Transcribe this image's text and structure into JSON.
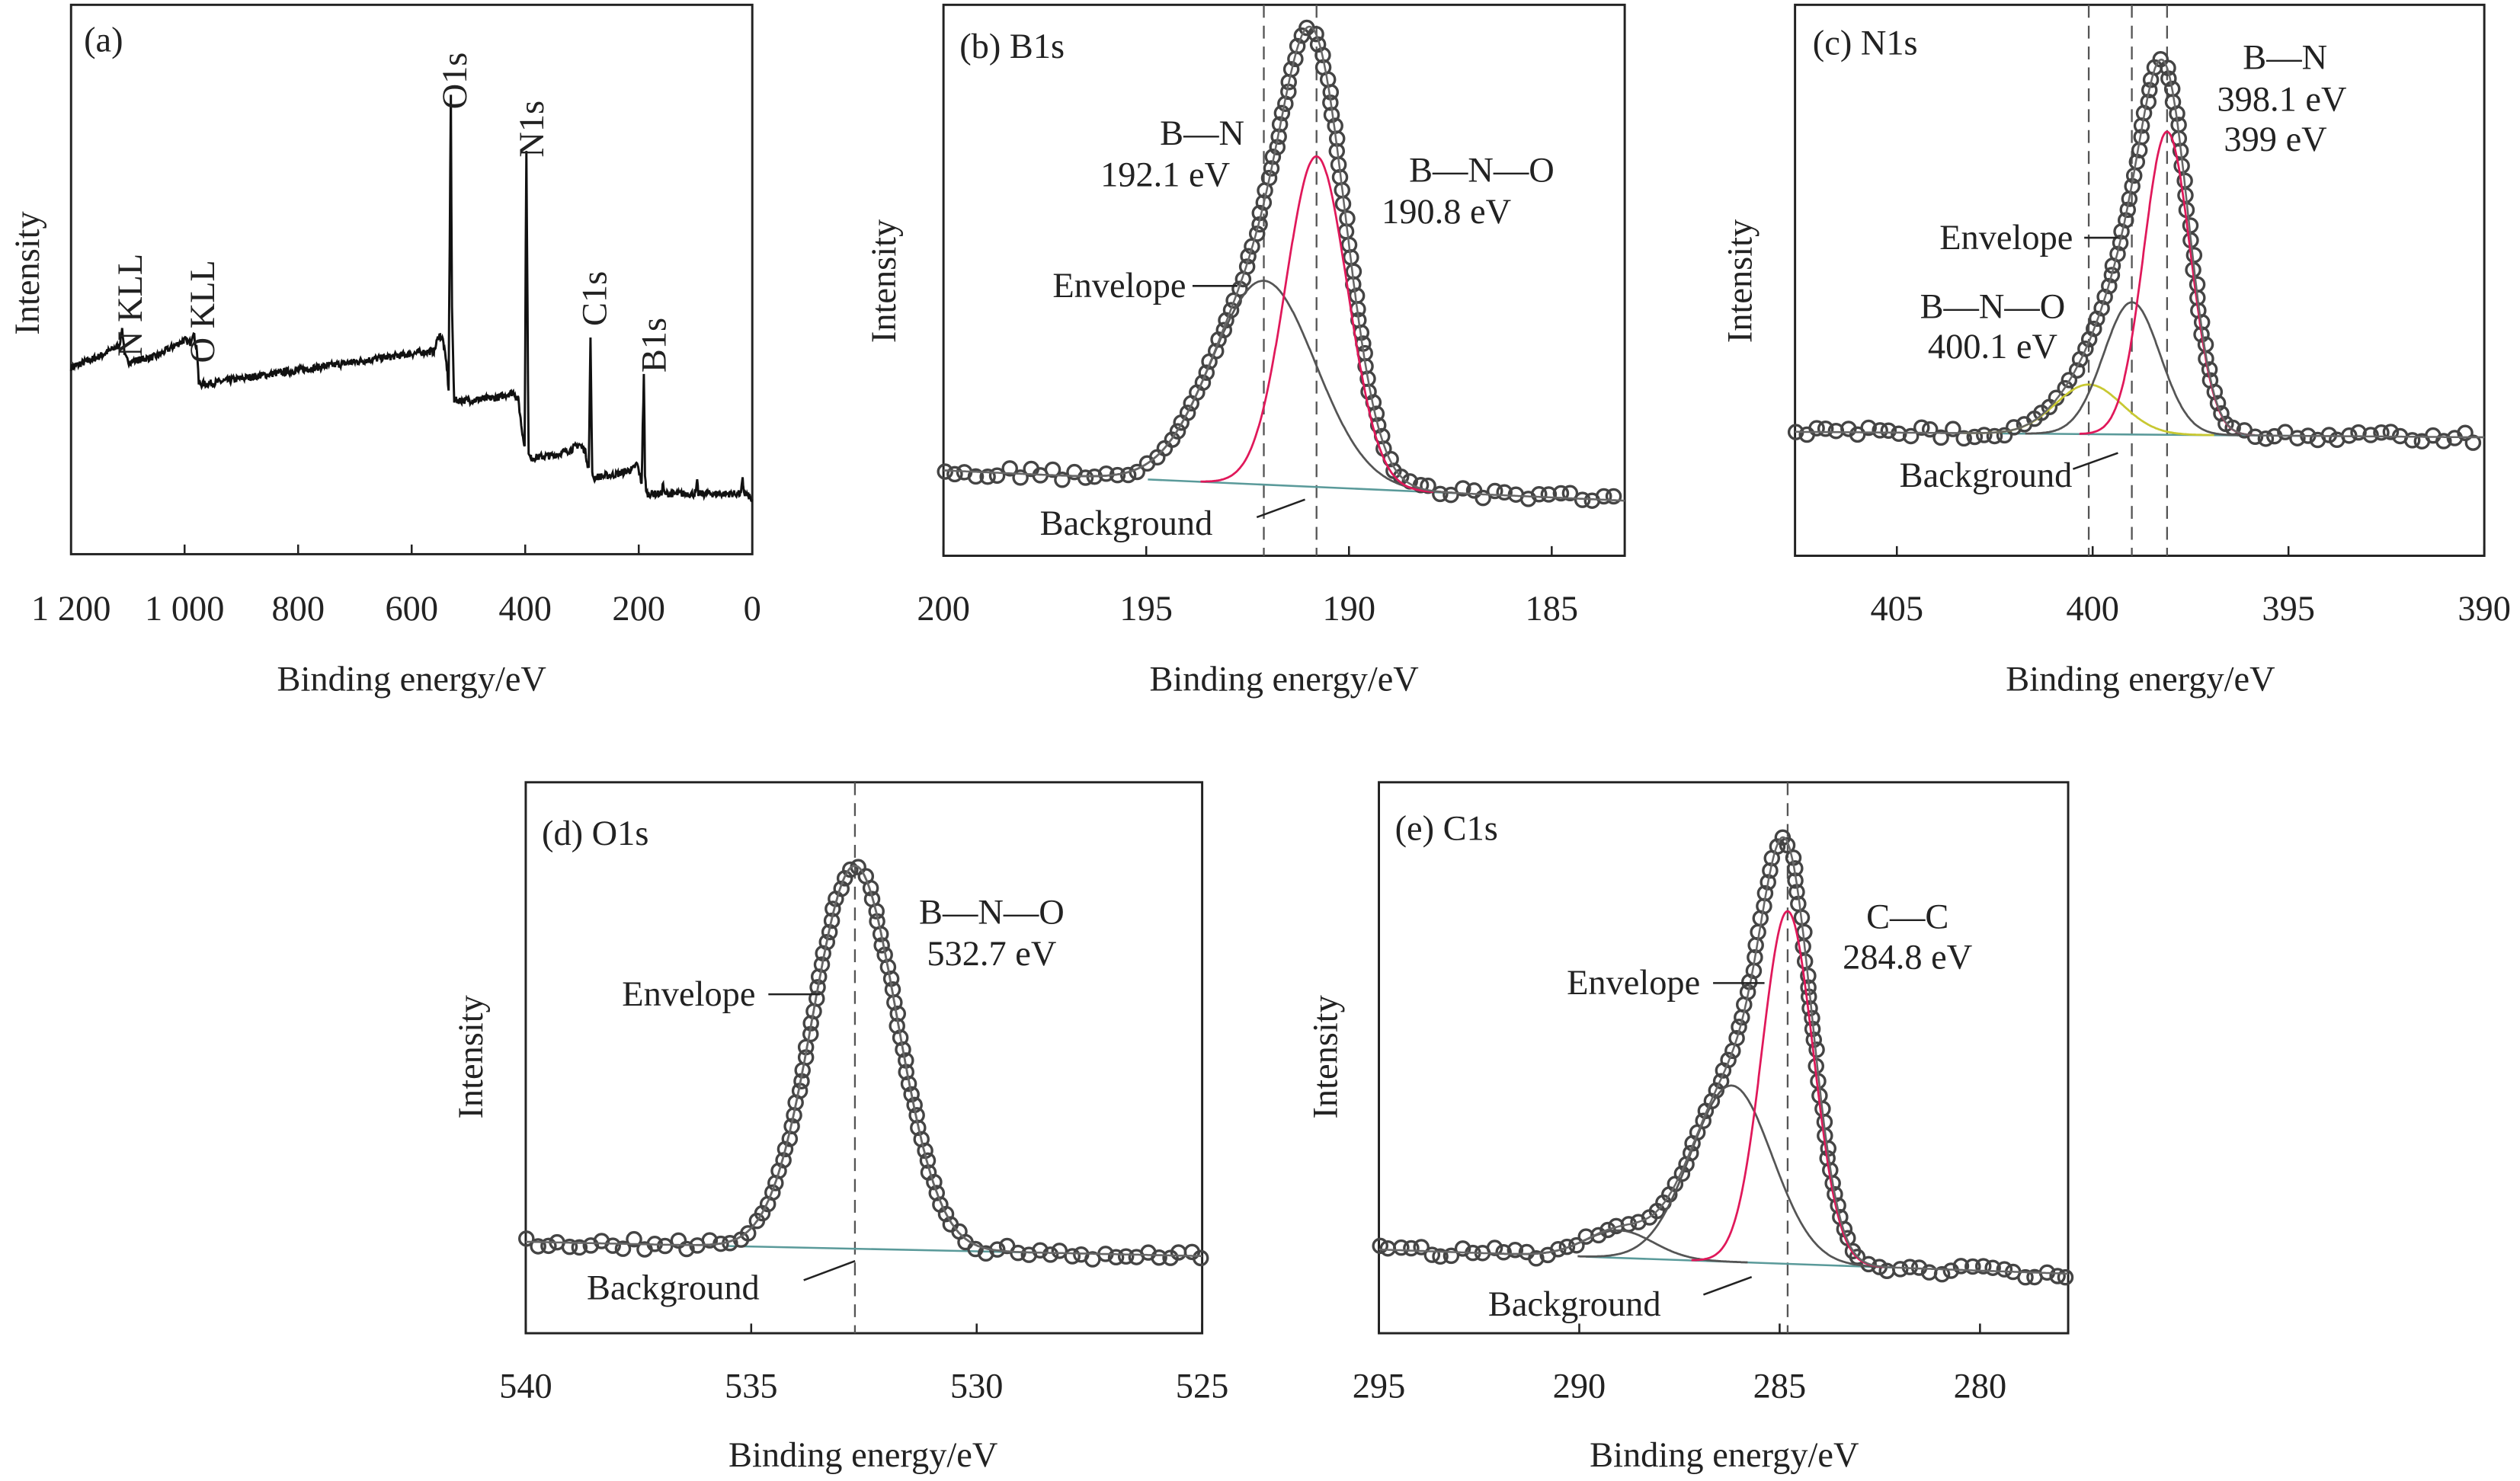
{
  "chart_data": [
    {
      "type": "line",
      "panel": "(a)",
      "xlabel": "Binding energy/eV",
      "ylabel": "Intensity",
      "xlim": [
        1200,
        0
      ],
      "ylim": [
        0,
        100
      ],
      "xticks": [
        1200,
        1000,
        800,
        600,
        400,
        200,
        0
      ],
      "xtick_labels": [
        "1 200",
        "1 000",
        "800",
        "600",
        "400",
        "200",
        "0"
      ],
      "peak_labels": [
        "N KLL",
        "O KLL",
        "O1s",
        "N1s",
        "C1s",
        "B1s"
      ],
      "x": [
        1200,
        1150,
        1115,
        1110,
        1105,
        1100,
        1050,
        1000,
        990,
        985,
        978,
        975,
        960,
        900,
        800,
        700,
        600,
        560,
        552,
        545,
        538,
        535,
        531,
        529,
        525,
        500,
        450,
        420,
        412,
        405,
        401,
        398,
        394,
        390,
        350,
        320,
        305,
        295,
        288,
        285,
        282,
        278,
        240,
        210,
        203,
        195,
        191,
        189,
        186,
        160,
        157,
        155,
        100,
        97,
        95,
        40,
        20,
        17,
        14,
        5,
        0
      ],
      "y": [
        34,
        36,
        38,
        41,
        36,
        35,
        36,
        39,
        38.5,
        40.5,
        37,
        31,
        31,
        32,
        33.5,
        35,
        36.5,
        37,
        40,
        39,
        34,
        30,
        83,
        45,
        28,
        28,
        28.5,
        29.5,
        28,
        22,
        20,
        74,
        18,
        17.5,
        18,
        19,
        20,
        19,
        15.5,
        39,
        14.5,
        14,
        14.5,
        15.5,
        16.5,
        13,
        33,
        14,
        11,
        11,
        13,
        11,
        11,
        13,
        11,
        11,
        11,
        13.5,
        11,
        10.5,
        9.6
      ]
    },
    {
      "type": "line",
      "panel": "(b) B1s",
      "xlabel": "Binding energy/eV",
      "ylabel": "Intensity",
      "xlim": [
        200,
        183.2
      ],
      "ylim": [
        0,
        100
      ],
      "xticks": [
        200,
        195,
        190,
        185
      ],
      "background": [
        15.5,
        10
      ],
      "components": [
        {
          "name": "B—N",
          "center": 192.1,
          "height": 37,
          "fwhm": 3.0,
          "color": "#555555"
        },
        {
          "name": "B—N—O",
          "center": 190.8,
          "height": 60,
          "fwhm": 1.8,
          "color": "#e0185a"
        }
      ],
      "reference_lines": [
        192.1,
        190.8
      ],
      "annotations": {
        "bn": "B—N",
        "bn_ev": "192.1 eV",
        "bno": "B—N—O",
        "bno_ev": "190.8 eV",
        "envelope": "Envelope",
        "background": "Background"
      }
    },
    {
      "type": "line",
      "panel": "(c) N1s",
      "xlabel": "Binding energy/eV",
      "ylabel": "Intensity",
      "xlim": [
        407.6,
        390
      ],
      "ylim": [
        0,
        100
      ],
      "xticks": [
        405,
        400,
        395,
        390
      ],
      "background": [
        22.5,
        21.5
      ],
      "components": [
        {
          "center": 400.1,
          "height": 9,
          "fwhm": 2.0,
          "color": "#c8c832"
        },
        {
          "center": 399,
          "height": 24,
          "fwhm": 1.7,
          "color": "#555555"
        },
        {
          "center": 398.1,
          "height": 55,
          "fwhm": 1.4,
          "color": "#e0185a"
        }
      ],
      "reference_lines": [
        400.1,
        399,
        398.1
      ],
      "annotations": {
        "bn": "B—N",
        "bn_ev1": "398.1 eV",
        "bn_ev2": "399 eV",
        "bno": "B—N—O",
        "bno_ev": "400.1 eV",
        "envelope": "Envelope",
        "background": "Background"
      }
    },
    {
      "type": "line",
      "panel": "(d) O1s",
      "xlabel": "Binding energy/eV",
      "ylabel": "Intensity",
      "xlim": [
        540,
        525
      ],
      "ylim": [
        0,
        100
      ],
      "xticks": [
        540,
        535,
        530,
        525
      ],
      "background": [
        16.6,
        14
      ],
      "components": [
        {
          "name": "B—N—O",
          "center": 532.7,
          "height": 69.5,
          "fwhm": 2.2,
          "color": "#555555"
        }
      ],
      "reference_lines": [
        532.7
      ],
      "annotations": {
        "bno": "B—N—O",
        "bno_ev": "532.7 eV",
        "envelope": "Envelope",
        "background": "Background"
      }
    },
    {
      "type": "line",
      "panel": "(e) C1s",
      "xlabel": "Binding energy/eV",
      "ylabel": "Intensity",
      "xlim": [
        295,
        277.8
      ],
      "ylim": [
        0,
        100
      ],
      "xticks": [
        295,
        290,
        285,
        280
      ],
      "background": [
        15.2,
        10.8
      ],
      "components": [
        {
          "center": 289,
          "height": 5,
          "fwhm": 2.0,
          "color": "#555555"
        },
        {
          "center": 286.2,
          "height": 32,
          "fwhm": 2.4,
          "color": "#555555"
        },
        {
          "name": "C—C",
          "center": 284.8,
          "height": 64,
          "fwhm": 1.5,
          "color": "#e0185a"
        }
      ],
      "reference_lines": [
        284.8
      ],
      "annotations": {
        "cc": "C—C",
        "cc_ev": "284.8 eV",
        "envelope": "Envelope",
        "background": "Background"
      }
    }
  ]
}
